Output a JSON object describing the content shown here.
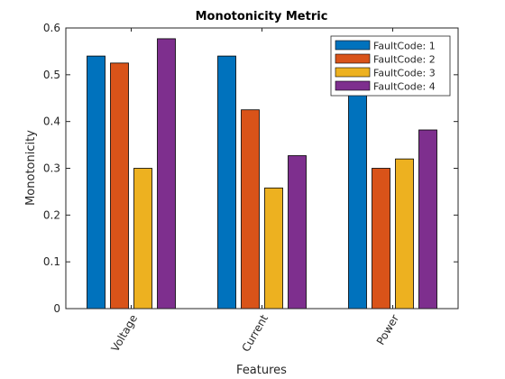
{
  "chart_data": {
    "type": "bar",
    "title": "Monotonicity Metric",
    "xlabel": "Features",
    "ylabel": "Monotonicity",
    "categories": [
      "Voltage",
      "Current",
      "Power"
    ],
    "series": [
      {
        "name": "FaultCode: 1",
        "color": "#0072BD",
        "values": [
          0.54,
          0.54,
          0.47
        ]
      },
      {
        "name": "FaultCode: 2",
        "color": "#D95319",
        "values": [
          0.525,
          0.425,
          0.3
        ]
      },
      {
        "name": "FaultCode: 3",
        "color": "#EDB120",
        "values": [
          0.3,
          0.258,
          0.32
        ]
      },
      {
        "name": "FaultCode: 4",
        "color": "#7E2F8E",
        "values": [
          0.577,
          0.327,
          0.382
        ]
      }
    ],
    "ylim": [
      0,
      0.6
    ],
    "yticks": [
      "0",
      "0.1",
      "0.2",
      "0.3",
      "0.4",
      "0.5",
      "0.6"
    ],
    "grid": false,
    "legend_position": "top-right"
  }
}
